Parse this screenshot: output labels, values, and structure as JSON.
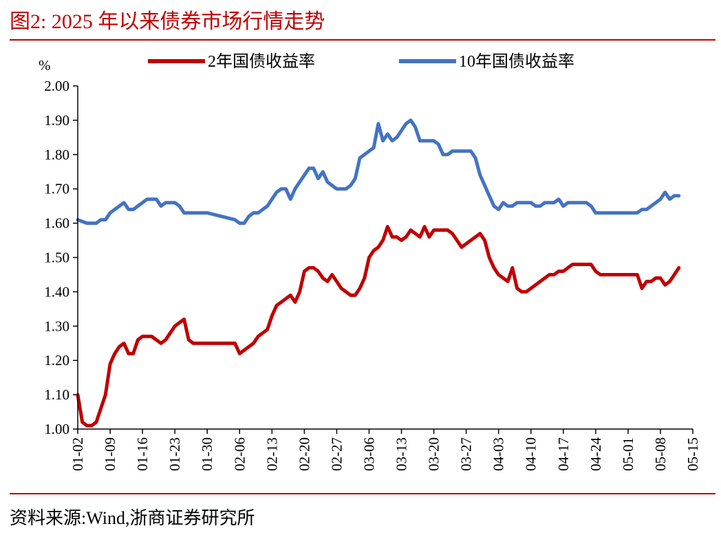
{
  "figure": {
    "title": "图2:  2025 年以来债券市场行情走势",
    "source": "资料来源:Wind,浙商证券研究所"
  },
  "colors": {
    "accent": "#c00000",
    "series_2y": "#c00000",
    "series_10y": "#4472c4"
  },
  "chart_data": {
    "type": "line",
    "title": "2025 年以来债券市场行情走势",
    "ylabel": "%",
    "xlabel": "",
    "ylim": [
      1.0,
      2.0
    ],
    "yticks": [
      "2.00",
      "1.90",
      "1.80",
      "1.70",
      "1.60",
      "1.50",
      "1.40",
      "1.30",
      "1.20",
      "1.10",
      "1.00"
    ],
    "x_range": [
      0,
      133
    ],
    "xticks": [
      {
        "label": "01-02",
        "x": 0
      },
      {
        "label": "01-09",
        "x": 7
      },
      {
        "label": "01-16",
        "x": 14
      },
      {
        "label": "01-23",
        "x": 21
      },
      {
        "label": "01-30",
        "x": 28
      },
      {
        "label": "02-06",
        "x": 35
      },
      {
        "label": "02-13",
        "x": 42
      },
      {
        "label": "02-20",
        "x": 49
      },
      {
        "label": "02-27",
        "x": 56
      },
      {
        "label": "03-06",
        "x": 63
      },
      {
        "label": "03-13",
        "x": 70
      },
      {
        "label": "03-20",
        "x": 77
      },
      {
        "label": "03-27",
        "x": 84
      },
      {
        "label": "04-03",
        "x": 91
      },
      {
        "label": "04-10",
        "x": 98
      },
      {
        "label": "04-17",
        "x": 105
      },
      {
        "label": "04-24",
        "x": 112
      },
      {
        "label": "05-01",
        "x": 119
      },
      {
        "label": "05-08",
        "x": 126
      },
      {
        "label": "05-15",
        "x": 133
      }
    ],
    "legend": {
      "position": "top"
    },
    "series": [
      {
        "name": "2年国债收益率",
        "color": "#c00000",
        "points": [
          [
            0,
            1.1
          ],
          [
            1,
            1.02
          ],
          [
            2,
            1.01
          ],
          [
            3,
            1.01
          ],
          [
            4,
            1.02
          ],
          [
            5,
            1.06
          ],
          [
            6,
            1.1
          ],
          [
            7,
            1.19
          ],
          [
            8,
            1.22
          ],
          [
            9,
            1.24
          ],
          [
            10,
            1.25
          ],
          [
            11,
            1.22
          ],
          [
            12,
            1.22
          ],
          [
            13,
            1.26
          ],
          [
            14,
            1.27
          ],
          [
            15,
            1.27
          ],
          [
            16,
            1.27
          ],
          [
            17,
            1.26
          ],
          [
            18,
            1.25
          ],
          [
            19,
            1.26
          ],
          [
            20,
            1.28
          ],
          [
            21,
            1.3
          ],
          [
            22,
            1.31
          ],
          [
            23,
            1.32
          ],
          [
            24,
            1.26
          ],
          [
            25,
            1.25
          ],
          [
            28,
            1.25
          ],
          [
            31,
            1.25
          ],
          [
            34,
            1.25
          ],
          [
            35,
            1.22
          ],
          [
            36,
            1.23
          ],
          [
            37,
            1.24
          ],
          [
            38,
            1.25
          ],
          [
            39,
            1.27
          ],
          [
            40,
            1.28
          ],
          [
            41,
            1.29
          ],
          [
            42,
            1.33
          ],
          [
            43,
            1.36
          ],
          [
            44,
            1.37
          ],
          [
            45,
            1.38
          ],
          [
            46,
            1.39
          ],
          [
            47,
            1.37
          ],
          [
            48,
            1.4
          ],
          [
            49,
            1.46
          ],
          [
            50,
            1.47
          ],
          [
            51,
            1.47
          ],
          [
            52,
            1.46
          ],
          [
            53,
            1.44
          ],
          [
            54,
            1.43
          ],
          [
            55,
            1.45
          ],
          [
            56,
            1.43
          ],
          [
            57,
            1.41
          ],
          [
            58,
            1.4
          ],
          [
            59,
            1.39
          ],
          [
            60,
            1.39
          ],
          [
            61,
            1.41
          ],
          [
            62,
            1.44
          ],
          [
            63,
            1.5
          ],
          [
            64,
            1.52
          ],
          [
            65,
            1.53
          ],
          [
            66,
            1.55
          ],
          [
            67,
            1.59
          ],
          [
            68,
            1.56
          ],
          [
            69,
            1.56
          ],
          [
            70,
            1.55
          ],
          [
            71,
            1.56
          ],
          [
            72,
            1.58
          ],
          [
            73,
            1.57
          ],
          [
            74,
            1.56
          ],
          [
            75,
            1.59
          ],
          [
            76,
            1.56
          ],
          [
            77,
            1.58
          ],
          [
            78,
            1.58
          ],
          [
            79,
            1.58
          ],
          [
            80,
            1.58
          ],
          [
            81,
            1.57
          ],
          [
            82,
            1.55
          ],
          [
            83,
            1.53
          ],
          [
            84,
            1.54
          ],
          [
            85,
            1.55
          ],
          [
            86,
            1.56
          ],
          [
            87,
            1.57
          ],
          [
            88,
            1.55
          ],
          [
            89,
            1.5
          ],
          [
            90,
            1.47
          ],
          [
            91,
            1.45
          ],
          [
            92,
            1.44
          ],
          [
            93,
            1.43
          ],
          [
            94,
            1.47
          ],
          [
            95,
            1.41
          ],
          [
            96,
            1.4
          ],
          [
            97,
            1.4
          ],
          [
            98,
            1.41
          ],
          [
            99,
            1.42
          ],
          [
            100,
            1.43
          ],
          [
            101,
            1.44
          ],
          [
            102,
            1.45
          ],
          [
            103,
            1.45
          ],
          [
            104,
            1.46
          ],
          [
            105,
            1.46
          ],
          [
            106,
            1.47
          ],
          [
            107,
            1.48
          ],
          [
            108,
            1.48
          ],
          [
            109,
            1.48
          ],
          [
            110,
            1.48
          ],
          [
            111,
            1.48
          ],
          [
            112,
            1.46
          ],
          [
            113,
            1.45
          ],
          [
            116,
            1.45
          ],
          [
            119,
            1.45
          ],
          [
            121,
            1.45
          ],
          [
            122,
            1.41
          ],
          [
            123,
            1.43
          ],
          [
            124,
            1.43
          ],
          [
            125,
            1.44
          ],
          [
            126,
            1.44
          ],
          [
            127,
            1.42
          ],
          [
            128,
            1.43
          ],
          [
            129,
            1.45
          ],
          [
            130,
            1.47
          ]
        ]
      },
      {
        "name": "10年国债收益率",
        "color": "#4472c4",
        "points": [
          [
            0,
            1.61
          ],
          [
            2,
            1.6
          ],
          [
            4,
            1.6
          ],
          [
            5,
            1.61
          ],
          [
            6,
            1.61
          ],
          [
            7,
            1.63
          ],
          [
            8,
            1.64
          ],
          [
            9,
            1.65
          ],
          [
            10,
            1.66
          ],
          [
            11,
            1.64
          ],
          [
            12,
            1.64
          ],
          [
            13,
            1.65
          ],
          [
            14,
            1.66
          ],
          [
            15,
            1.67
          ],
          [
            16,
            1.67
          ],
          [
            17,
            1.67
          ],
          [
            18,
            1.65
          ],
          [
            19,
            1.66
          ],
          [
            20,
            1.66
          ],
          [
            21,
            1.66
          ],
          [
            22,
            1.65
          ],
          [
            23,
            1.63
          ],
          [
            25,
            1.63
          ],
          [
            28,
            1.63
          ],
          [
            31,
            1.62
          ],
          [
            34,
            1.61
          ],
          [
            35,
            1.6
          ],
          [
            36,
            1.6
          ],
          [
            37,
            1.62
          ],
          [
            38,
            1.63
          ],
          [
            39,
            1.63
          ],
          [
            40,
            1.64
          ],
          [
            41,
            1.65
          ],
          [
            42,
            1.67
          ],
          [
            43,
            1.69
          ],
          [
            44,
            1.7
          ],
          [
            45,
            1.7
          ],
          [
            46,
            1.67
          ],
          [
            47,
            1.7
          ],
          [
            48,
            1.72
          ],
          [
            49,
            1.74
          ],
          [
            50,
            1.76
          ],
          [
            51,
            1.76
          ],
          [
            52,
            1.73
          ],
          [
            53,
            1.75
          ],
          [
            54,
            1.72
          ],
          [
            55,
            1.71
          ],
          [
            56,
            1.7
          ],
          [
            57,
            1.7
          ],
          [
            58,
            1.7
          ],
          [
            59,
            1.71
          ],
          [
            60,
            1.73
          ],
          [
            61,
            1.79
          ],
          [
            62,
            1.8
          ],
          [
            63,
            1.81
          ],
          [
            64,
            1.82
          ],
          [
            65,
            1.89
          ],
          [
            66,
            1.84
          ],
          [
            67,
            1.86
          ],
          [
            68,
            1.84
          ],
          [
            69,
            1.85
          ],
          [
            70,
            1.87
          ],
          [
            71,
            1.89
          ],
          [
            72,
            1.9
          ],
          [
            73,
            1.88
          ],
          [
            74,
            1.84
          ],
          [
            75,
            1.84
          ],
          [
            76,
            1.84
          ],
          [
            77,
            1.84
          ],
          [
            78,
            1.83
          ],
          [
            79,
            1.8
          ],
          [
            80,
            1.8
          ],
          [
            81,
            1.81
          ],
          [
            82,
            1.81
          ],
          [
            83,
            1.81
          ],
          [
            84,
            1.81
          ],
          [
            85,
            1.81
          ],
          [
            86,
            1.79
          ],
          [
            87,
            1.74
          ],
          [
            88,
            1.71
          ],
          [
            89,
            1.68
          ],
          [
            90,
            1.65
          ],
          [
            91,
            1.64
          ],
          [
            92,
            1.66
          ],
          [
            93,
            1.65
          ],
          [
            94,
            1.65
          ],
          [
            95,
            1.66
          ],
          [
            96,
            1.66
          ],
          [
            97,
            1.66
          ],
          [
            98,
            1.66
          ],
          [
            99,
            1.65
          ],
          [
            100,
            1.65
          ],
          [
            101,
            1.66
          ],
          [
            102,
            1.66
          ],
          [
            103,
            1.66
          ],
          [
            104,
            1.67
          ],
          [
            105,
            1.65
          ],
          [
            106,
            1.66
          ],
          [
            107,
            1.66
          ],
          [
            108,
            1.66
          ],
          [
            109,
            1.66
          ],
          [
            110,
            1.66
          ],
          [
            111,
            1.65
          ],
          [
            112,
            1.63
          ],
          [
            113,
            1.63
          ],
          [
            116,
            1.63
          ],
          [
            119,
            1.63
          ],
          [
            121,
            1.63
          ],
          [
            122,
            1.64
          ],
          [
            123,
            1.64
          ],
          [
            124,
            1.65
          ],
          [
            125,
            1.66
          ],
          [
            126,
            1.67
          ],
          [
            127,
            1.69
          ],
          [
            128,
            1.67
          ],
          [
            129,
            1.68
          ],
          [
            130,
            1.68
          ]
        ]
      }
    ]
  }
}
